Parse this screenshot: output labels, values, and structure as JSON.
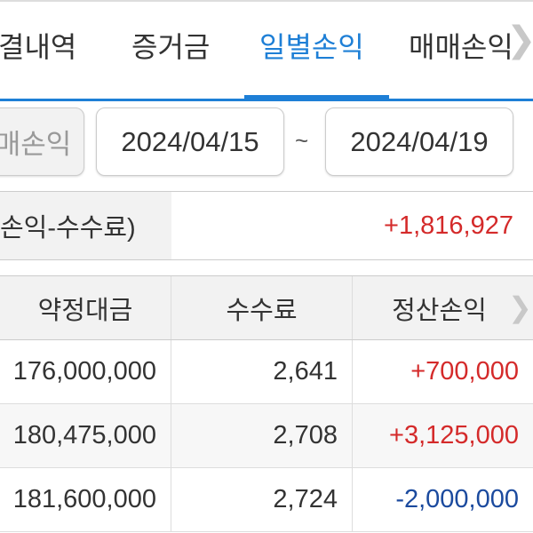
{
  "tabs": [
    {
      "label": "결내역"
    },
    {
      "label": "증거금"
    },
    {
      "label": "일별손익",
      "active": true
    },
    {
      "label": "매매손익"
    }
  ],
  "filter": {
    "type_button": "매손익",
    "start_date": "2024/04/15",
    "separator": "~",
    "end_date": "2024/04/19"
  },
  "summary": {
    "label": "손익-수수료)",
    "value": "+1,816,927"
  },
  "table": {
    "headers": [
      "약정대금",
      "수수료",
      "정산손익"
    ],
    "rows": [
      [
        "176,000,000",
        "2,641",
        "+700,000"
      ],
      [
        "180,475,000",
        "2,708",
        "+3,125,000"
      ],
      [
        "181,600,000",
        "2,724",
        "-2,000,000"
      ]
    ]
  },
  "colors": {
    "accent": "#1e7fd6",
    "positive": "#d42a2a",
    "negative": "#1b4a9e"
  }
}
